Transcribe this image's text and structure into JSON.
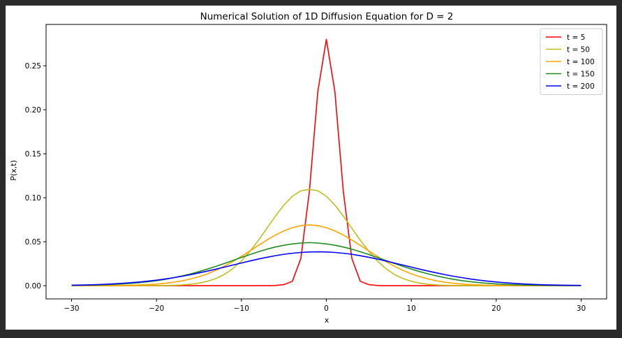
{
  "chart_data": {
    "type": "line",
    "title": "Numerical Solution of 1D Diffusion Equation for D = 2",
    "xlabel": "x",
    "ylabel": "P(x,t)",
    "xlim": [
      -33,
      33
    ],
    "ylim": [
      -0.015,
      0.297
    ],
    "xticks": [
      -30,
      -20,
      -10,
      0,
      10,
      20,
      30
    ],
    "xtick_labels": [
      "−30",
      "−20",
      "−10",
      "0",
      "10",
      "20",
      "30"
    ],
    "yticks": [
      0.0,
      0.05,
      0.1,
      0.15,
      0.2,
      0.25
    ],
    "ytick_labels": [
      "0.00",
      "0.05",
      "0.10",
      "0.15",
      "0.20",
      "0.25"
    ],
    "grid": false,
    "legend_position": "top-right",
    "x": [
      -30,
      -29,
      -28,
      -27,
      -26,
      -25,
      -24,
      -23,
      -22,
      -21,
      -20,
      -19,
      -18,
      -17,
      -16,
      -15,
      -14,
      -13,
      -12,
      -11,
      -10,
      -9,
      -8,
      -7,
      -6,
      -5,
      -4,
      -3,
      -2,
      -1,
      0,
      1,
      2,
      3,
      4,
      5,
      6,
      7,
      8,
      9,
      10,
      11,
      12,
      13,
      14,
      15,
      16,
      17,
      18,
      19,
      20,
      21,
      22,
      23,
      24,
      25,
      26,
      27,
      28,
      29,
      30
    ],
    "series": [
      {
        "name": "t = 5",
        "color": "#ff0000",
        "values": [
          0.0,
          0.0,
          0.0,
          0.0,
          0.0,
          0.0,
          0.0,
          0.0,
          0.0,
          0.0,
          0.0,
          0.0,
          0.0,
          0.0,
          0.0,
          0.0,
          0.0,
          0.0,
          0.0,
          0.0,
          0.0,
          0.0,
          0.0,
          0.0,
          0.0002,
          0.0012,
          0.005,
          0.031,
          0.107,
          0.221,
          0.28,
          0.221,
          0.107,
          0.031,
          0.005,
          0.0012,
          0.0002,
          0.0,
          0.0,
          0.0,
          0.0,
          0.0,
          0.0,
          0.0,
          0.0,
          0.0,
          0.0,
          0.0,
          0.0,
          0.0,
          0.0,
          0.0,
          0.0,
          0.0,
          0.0,
          0.0,
          0.0,
          0.0,
          0.0,
          0.0,
          0.0
        ]
      },
      {
        "name": "t = 50",
        "color": "#bfbf1f",
        "values": [
          0.0,
          0.0,
          0.0,
          0.0,
          0.0,
          0.0,
          0.0,
          0.0,
          0.0,
          0.0,
          0.0001,
          0.0002,
          0.0004,
          0.0008,
          0.0016,
          0.0029,
          0.005,
          0.0082,
          0.0129,
          0.0195,
          0.0282,
          0.039,
          0.0516,
          0.0653,
          0.0791,
          0.0917,
          0.1017,
          0.1079,
          0.1095,
          0.1079,
          0.1017,
          0.0917,
          0.0791,
          0.0653,
          0.0516,
          0.039,
          0.0282,
          0.0195,
          0.0129,
          0.0082,
          0.005,
          0.0029,
          0.0016,
          0.0008,
          0.0004,
          0.0002,
          0.0001,
          0.0,
          0.0,
          0.0,
          0.0,
          0.0,
          0.0,
          0.0,
          0.0,
          0.0,
          0.0,
          0.0,
          0.0,
          0.0,
          0.0
        ]
      },
      {
        "name": "t = 100",
        "color": "#ffa500",
        "values": [
          0.0,
          0.0,
          0.0,
          0.0001,
          0.0001,
          0.0002,
          0.0003,
          0.0005,
          0.0008,
          0.0012,
          0.0018,
          0.0027,
          0.0039,
          0.0055,
          0.0076,
          0.0102,
          0.0135,
          0.0175,
          0.0222,
          0.0275,
          0.0334,
          0.0395,
          0.0458,
          0.0519,
          0.0575,
          0.0623,
          0.066,
          0.0683,
          0.0691,
          0.0683,
          0.066,
          0.0623,
          0.0575,
          0.0519,
          0.0458,
          0.0395,
          0.0334,
          0.0275,
          0.0222,
          0.0175,
          0.0135,
          0.0102,
          0.0076,
          0.0055,
          0.0039,
          0.0027,
          0.0018,
          0.0012,
          0.0008,
          0.0005,
          0.0003,
          0.0002,
          0.0001,
          0.0001,
          0.0,
          0.0,
          0.0,
          0.0,
          0.0,
          0.0,
          0.0
        ]
      },
      {
        "name": "t = 150",
        "color": "#228b22",
        "values": [
          0.0003,
          0.0004,
          0.0006,
          0.0008,
          0.0011,
          0.0015,
          0.002,
          0.0027,
          0.0035,
          0.0045,
          0.0057,
          0.0072,
          0.009,
          0.0111,
          0.0134,
          0.016,
          0.0189,
          0.022,
          0.0253,
          0.0287,
          0.0321,
          0.0354,
          0.0386,
          0.0415,
          0.044,
          0.046,
          0.0475,
          0.0485,
          0.049,
          0.0485,
          0.0475,
          0.046,
          0.044,
          0.0415,
          0.0386,
          0.0354,
          0.0321,
          0.0287,
          0.0253,
          0.022,
          0.0189,
          0.016,
          0.0134,
          0.0111,
          0.009,
          0.0072,
          0.0057,
          0.0045,
          0.0035,
          0.0027,
          0.002,
          0.0015,
          0.0011,
          0.0008,
          0.0006,
          0.0004,
          0.0003,
          0.0002,
          0.0001,
          0.0001,
          0.0001
        ]
      },
      {
        "name": "t = 200",
        "color": "#0000ff",
        "values": [
          0.0005,
          0.0007,
          0.0009,
          0.0012,
          0.0016,
          0.0021,
          0.0027,
          0.0034,
          0.0042,
          0.0052,
          0.0063,
          0.0076,
          0.0091,
          0.0107,
          0.0125,
          0.0145,
          0.0166,
          0.0188,
          0.0211,
          0.0235,
          0.0258,
          0.0281,
          0.0303,
          0.0323,
          0.0341,
          0.0357,
          0.0369,
          0.0378,
          0.0383,
          0.0385,
          0.0383,
          0.0378,
          0.0369,
          0.0357,
          0.0341,
          0.0323,
          0.0303,
          0.0281,
          0.0258,
          0.0235,
          0.0211,
          0.0188,
          0.0166,
          0.0145,
          0.0125,
          0.0107,
          0.0091,
          0.0076,
          0.0063,
          0.0052,
          0.0042,
          0.0034,
          0.0027,
          0.0021,
          0.0016,
          0.0012,
          0.0009,
          0.0007,
          0.0005,
          0.0004,
          0.0003
        ]
      }
    ]
  }
}
